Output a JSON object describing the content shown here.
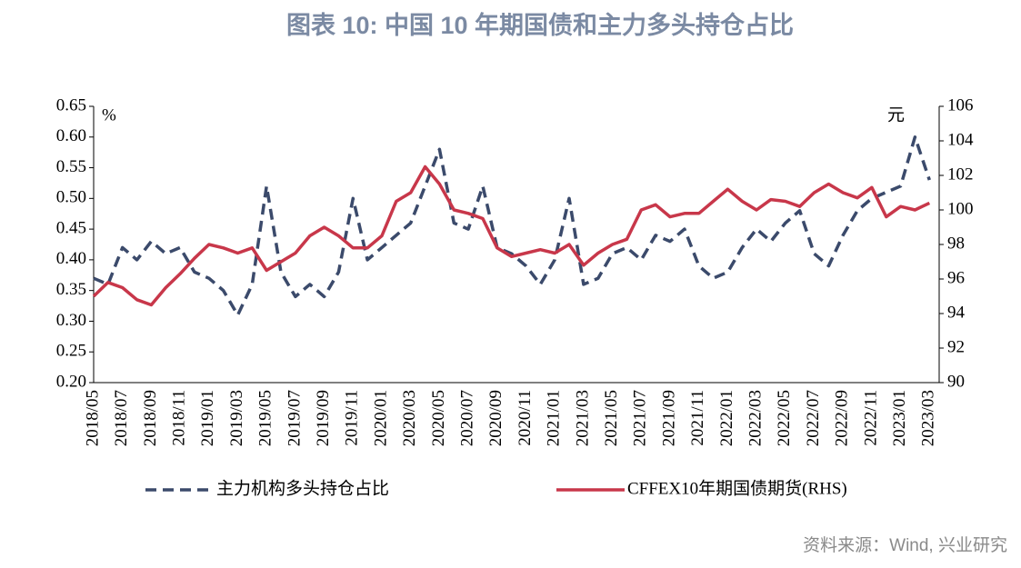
{
  "chart_data": {
    "type": "line",
    "title": "图表 10: 中国 10 年期国债和主力多头持仓占比",
    "y_label": "%",
    "y2_label": "元",
    "source": "资料来源：Wind, 兴业研究",
    "categories": [
      "2018/05",
      null,
      "2018/07",
      null,
      "2018/09",
      null,
      "2018/11",
      null,
      "2019/01",
      null,
      "2019/03",
      null,
      "2019/05",
      null,
      "2019/07",
      null,
      "2019/09",
      null,
      "2019/11",
      null,
      "2020/01",
      null,
      "2020/03",
      null,
      "2020/05",
      null,
      "2020/07",
      null,
      "2020/09",
      null,
      "2020/11",
      null,
      "2021/01",
      null,
      "2021/03",
      null,
      "2021/05",
      null,
      "2021/07",
      null,
      "2021/09",
      null,
      "2021/11",
      null,
      "2022/01",
      null,
      "2022/03",
      null,
      "2022/05",
      null,
      "2022/07",
      null,
      "2022/09",
      null,
      "2022/11",
      null,
      "2023/01",
      null,
      "2023/03"
    ],
    "series": [
      {
        "name": "主力机构多头持仓占比",
        "color": "#3b4a6b",
        "dash": true,
        "values": [
          0.37,
          0.36,
          0.42,
          0.4,
          0.43,
          0.41,
          0.42,
          0.38,
          0.37,
          0.35,
          0.31,
          0.36,
          0.52,
          0.38,
          0.34,
          0.36,
          0.34,
          0.38,
          0.5,
          0.4,
          0.42,
          0.44,
          0.46,
          0.52,
          0.58,
          0.46,
          0.45,
          0.52,
          0.42,
          0.41,
          0.39,
          0.36,
          0.4,
          0.5,
          0.36,
          0.37,
          0.41,
          0.42,
          0.4,
          0.44,
          0.43,
          0.45,
          0.39,
          0.37,
          0.38,
          0.42,
          0.45,
          0.43,
          0.46,
          0.48,
          0.41,
          0.39,
          0.44,
          0.48,
          0.5,
          0.51,
          0.52,
          0.6,
          0.53
        ]
      },
      {
        "name": "CFFEX10年期国债期货(RHS)",
        "color": "#c8374a",
        "axis": "y2",
        "values": [
          95,
          95.8,
          95.5,
          94.8,
          94.5,
          95.5,
          96.3,
          97.2,
          98,
          97.8,
          97.5,
          97.8,
          96.5,
          97,
          97.5,
          98.5,
          99,
          98.5,
          97.8,
          97.8,
          98.5,
          100.5,
          101,
          102.5,
          101.5,
          100,
          99.8,
          99.5,
          97.8,
          97.3,
          97.5,
          97.7,
          97.5,
          98,
          96.8,
          97.5,
          98,
          98.3,
          100,
          100.3,
          99.6,
          99.8,
          99.8,
          100.5,
          101.2,
          100.5,
          100,
          100.6,
          100.5,
          100.2,
          101,
          101.5,
          101,
          100.7,
          101.3,
          99.6,
          100.2,
          100,
          100.4
        ]
      }
    ],
    "ylim": [
      0.2,
      0.65
    ],
    "yticks": [
      {
        "value": 0.2,
        "label": "0.20"
      },
      {
        "value": 0.25,
        "label": "0.25"
      },
      {
        "value": 0.3,
        "label": "0.30"
      },
      {
        "value": 0.35,
        "label": "0.35"
      },
      {
        "value": 0.4,
        "label": "0.40"
      },
      {
        "value": 0.45,
        "label": "0.45"
      },
      {
        "value": 0.5,
        "label": "0.50"
      },
      {
        "value": 0.55,
        "label": "0.55"
      },
      {
        "value": 0.6,
        "label": "0.60"
      },
      {
        "value": 0.65,
        "label": "0.65"
      }
    ],
    "y2lim": [
      90,
      106
    ],
    "y2ticks": [
      90,
      92,
      94,
      96,
      98,
      100,
      102,
      104,
      106
    ],
    "grid": false,
    "legend": "bottom"
  }
}
